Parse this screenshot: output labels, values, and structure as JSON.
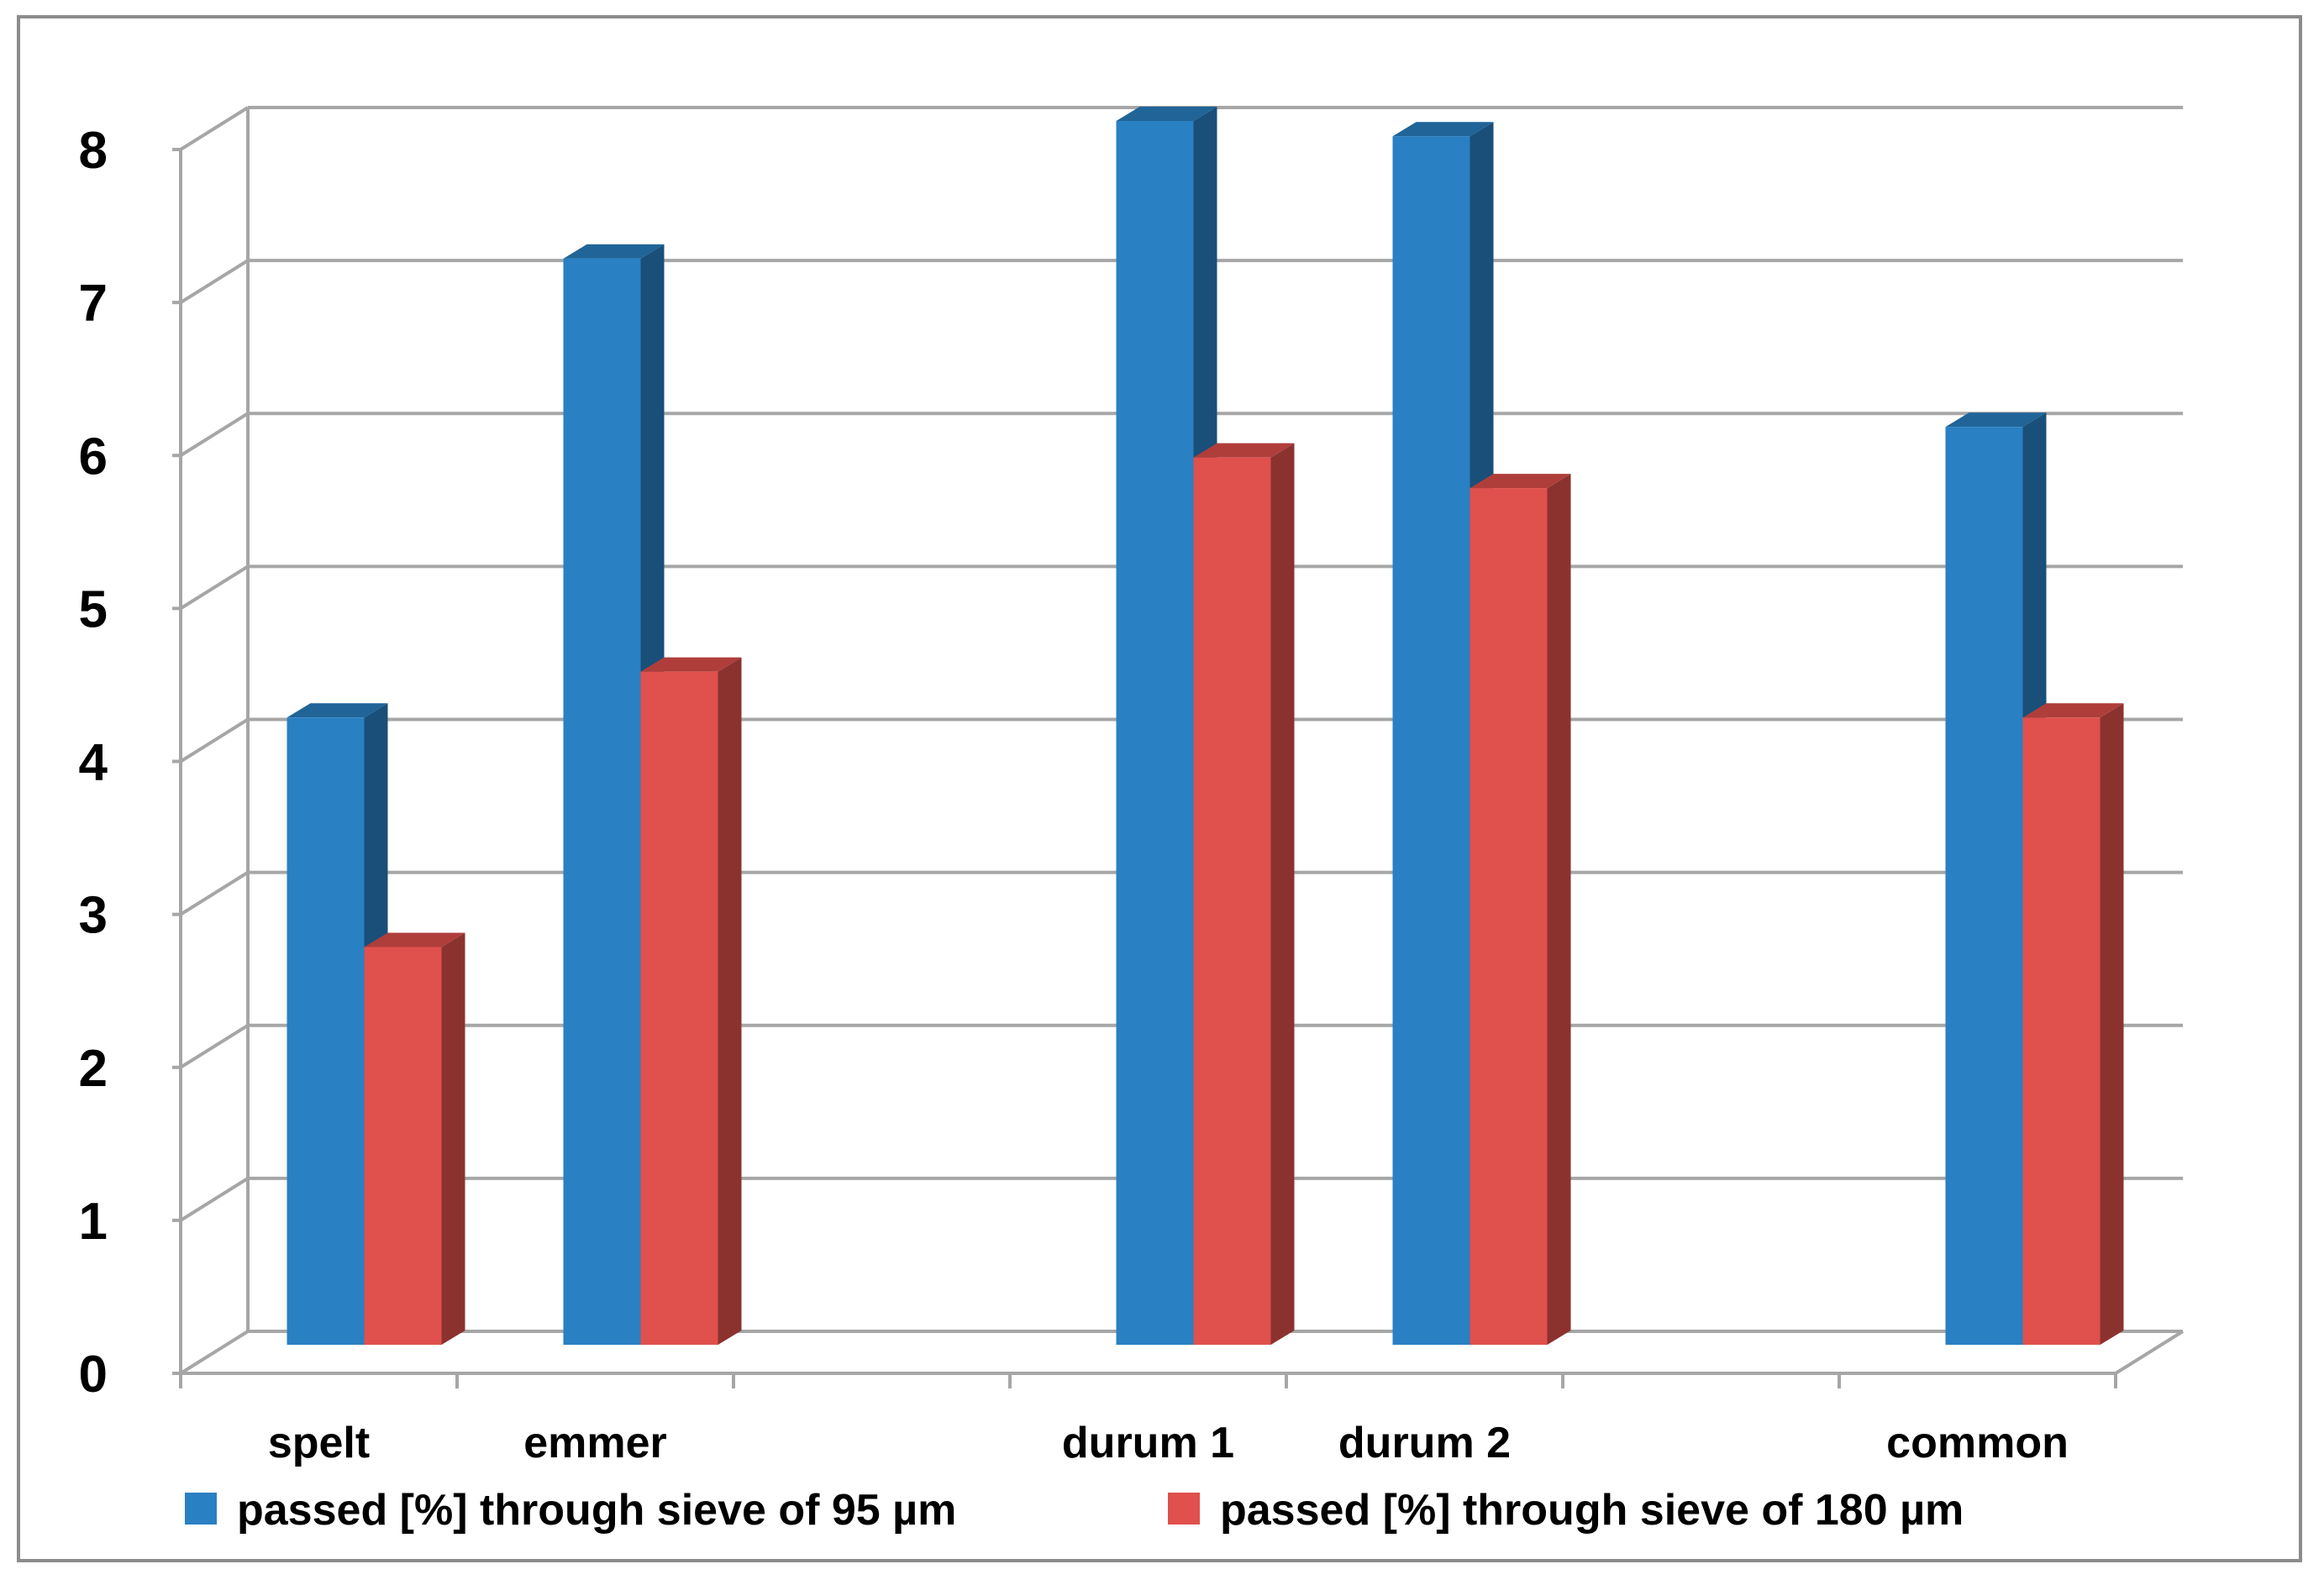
{
  "chart_data": {
    "type": "bar",
    "style": "3d-clustered-column",
    "title": "",
    "xlabel": "",
    "ylabel": "",
    "ylim": [
      0,
      8
    ],
    "y_ticks": [
      0,
      1,
      2,
      3,
      4,
      5,
      6,
      7,
      8
    ],
    "grid": true,
    "legend_position": "bottom",
    "category_slots": [
      "spelt",
      "emmer",
      "",
      "durum 1",
      "durum 2",
      "",
      "common"
    ],
    "categories": [
      "spelt",
      "emmer",
      "durum 1",
      "durum 2",
      "common"
    ],
    "series": [
      {
        "name": "passed [%] through sieve of  95 µm",
        "color": "#2980c3",
        "values": [
          4.1,
          7.1,
          8.0,
          7.9,
          6.0
        ]
      },
      {
        "name": "passed [%] through sieve of  180 µm",
        "color": "#e0504c",
        "values": [
          2.6,
          4.4,
          5.8,
          5.6,
          4.1
        ]
      }
    ]
  }
}
